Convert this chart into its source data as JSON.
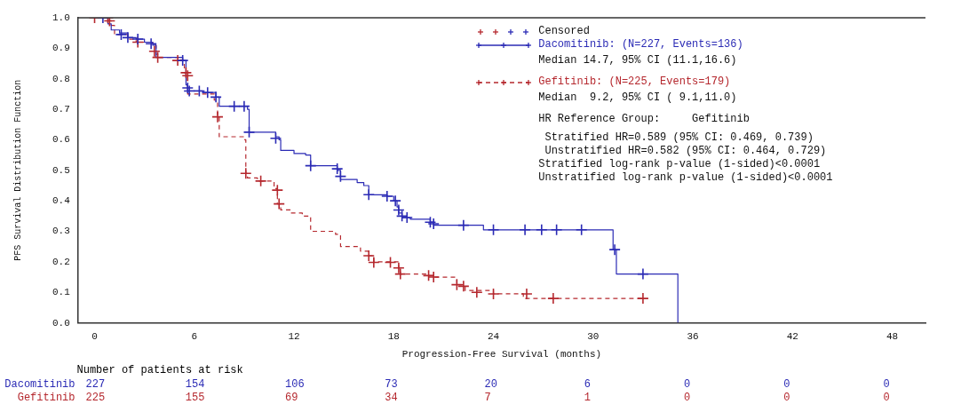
{
  "chart_data": {
    "type": "step",
    "xlabel": "Progression-Free Survival (months)",
    "ylabel": "PFS Survival Distribution Function",
    "legend": "top right",
    "grid": false,
    "xlim": [
      -1,
      50
    ],
    "xticks": [
      0,
      6,
      12,
      18,
      24,
      30,
      36,
      42,
      48
    ],
    "ylim": [
      0,
      1
    ],
    "yticks": [
      {
        "value": 0,
        "label": "0.0"
      },
      {
        "value": 0.1,
        "label": "0.1"
      },
      {
        "value": 0.2,
        "label": "0.2"
      },
      {
        "value": 0.3,
        "label": "0.3"
      },
      {
        "value": 0.4,
        "label": "0.4"
      },
      {
        "value": 0.5,
        "label": "0.5"
      },
      {
        "value": 0.6,
        "label": "0.6"
      },
      {
        "value": 0.7,
        "label": "0.7"
      },
      {
        "value": 0.8,
        "label": "0.8"
      },
      {
        "value": 0.9,
        "label": "0.9"
      },
      {
        "value": 1,
        "label": "1.0"
      }
    ],
    "series": [
      {
        "name": "Censored",
        "type": "scatter",
        "marker": "cross",
        "color": "#2b2bb5",
        "x": [
          0.5,
          1.6,
          2,
          2.6,
          3.4,
          5.3,
          5.6,
          5.7,
          6.3,
          6.8,
          7.3,
          8.4,
          9.0,
          9.3,
          10.9,
          13.0,
          14.6,
          14.8,
          16.5,
          17.6,
          18.1,
          18.3,
          18.5,
          18.8,
          20.2,
          20.4,
          22.2,
          24,
          25.9,
          26.9,
          27.8,
          29.3,
          31.3,
          33.0
        ],
        "values": [
          1.0,
          0.945,
          0.935,
          0.93,
          0.915,
          0.86,
          0.77,
          0.76,
          0.76,
          0.755,
          0.74,
          0.71,
          0.71,
          0.625,
          0.605,
          0.515,
          0.505,
          0.48,
          0.42,
          0.415,
          0.4,
          0.37,
          0.35,
          0.345,
          0.33,
          0.325,
          0.32,
          0.305,
          0.305,
          0.305,
          0.305,
          0.305,
          0.24,
          0.16
        ]
      },
      {
        "type": "scatter",
        "marker": "cross",
        "color": "#b5282e",
        "x": [
          0,
          0.8,
          0.9,
          2.6,
          3.6,
          3.8,
          5.0,
          5.5,
          5.6,
          7.4,
          9.1,
          10.0,
          11.0,
          11.1,
          16.5,
          16.8,
          17.8,
          18.3,
          18.4,
          20.1,
          20.4,
          21.8,
          22.2,
          23.0,
          24.0,
          26.0,
          27.6,
          33.0
        ],
        "values": [
          1.0,
          1.0,
          0.99,
          0.92,
          0.89,
          0.87,
          0.86,
          0.82,
          0.81,
          0.675,
          0.49,
          0.465,
          0.435,
          0.39,
          0.22,
          0.198,
          0.198,
          0.18,
          0.16,
          0.155,
          0.15,
          0.125,
          0.12,
          0.1,
          0.095,
          0.095,
          0.08,
          0.08
        ]
      },
      {
        "name": "Dacomitinib: (N=227, Events=136)",
        "color": "#2b2bb5",
        "line_style": "solid",
        "x": [
          0,
          0.8,
          1.0,
          1.5,
          2,
          2.5,
          3,
          3.5,
          3.7,
          5.3,
          5.5,
          5.6,
          6.5,
          7.3,
          7.5,
          9.2,
          9.3,
          10.9,
          11.1,
          11.2,
          12,
          12.7,
          13.0,
          14.6,
          14.8,
          15.8,
          16.2,
          16.5,
          17.6,
          18,
          18.2,
          18.3,
          18.5,
          19,
          20.2,
          20.4,
          23.4,
          31.2,
          31.4,
          35.1
        ],
        "values": [
          1.0,
          0.98,
          0.96,
          0.95,
          0.935,
          0.93,
          0.92,
          0.91,
          0.87,
          0.86,
          0.78,
          0.76,
          0.755,
          0.74,
          0.71,
          0.7,
          0.625,
          0.61,
          0.6,
          0.565,
          0.555,
          0.55,
          0.515,
          0.5,
          0.47,
          0.46,
          0.45,
          0.42,
          0.415,
          0.4,
          0.38,
          0.36,
          0.345,
          0.34,
          0.33,
          0.32,
          0.305,
          0.24,
          0.16,
          0
        ]
      },
      {
        "name": "Gefitinib: (N=225, Events=179)",
        "color": "#b5282e",
        "line_style": "dashed",
        "x": [
          0,
          0.9,
          1.0,
          1.2,
          2,
          2.5,
          3.5,
          3.7,
          3.8,
          5.2,
          5.4,
          5.5,
          5.6,
          7.2,
          7.4,
          7.5,
          9.0,
          9.1,
          9.2,
          9.8,
          10.8,
          11.0,
          11.2,
          11.8,
          12.5,
          13.0,
          14.5,
          14.8,
          16.0,
          16.5,
          16.8,
          18.3,
          18.4,
          20.1,
          20.4,
          21.8,
          22.3,
          24,
          25.8,
          33.0
        ],
        "values": [
          1.0,
          0.99,
          0.975,
          0.945,
          0.93,
          0.92,
          0.91,
          0.88,
          0.87,
          0.86,
          0.82,
          0.81,
          0.75,
          0.73,
          0.675,
          0.61,
          0.6,
          0.49,
          0.475,
          0.465,
          0.44,
          0.39,
          0.37,
          0.36,
          0.35,
          0.3,
          0.29,
          0.25,
          0.235,
          0.22,
          0.2,
          0.18,
          0.16,
          0.155,
          0.15,
          0.125,
          0.106,
          0.095,
          0.08,
          0.08
        ]
      }
    ],
    "annotations": [
      "Median 14.7, 95% CI (11.1,16.6)",
      "Median  9.2, 95% CI ( 9.1,11.0)",
      "HR Reference Group:     Gefitinib",
      " Stratified HR=0.589 (95% CI: 0.469, 0.739)",
      " Unstratified HR=0.582 (95% CI: 0.464, 0.729)",
      "Stratified log-rank p-value (1-sided)<0.0001",
      "Unstratified log-rank p-value (1-sided)<0.0001",
      "Number of patients at risk",
      "Dacomitinib",
      "227",
      "154",
      "106",
      "73",
      "20",
      "6",
      "0",
      "0",
      "0",
      "Gefitinib",
      "225",
      "155",
      "69",
      "34",
      "7",
      "1",
      "0",
      "0",
      "0"
    ]
  }
}
